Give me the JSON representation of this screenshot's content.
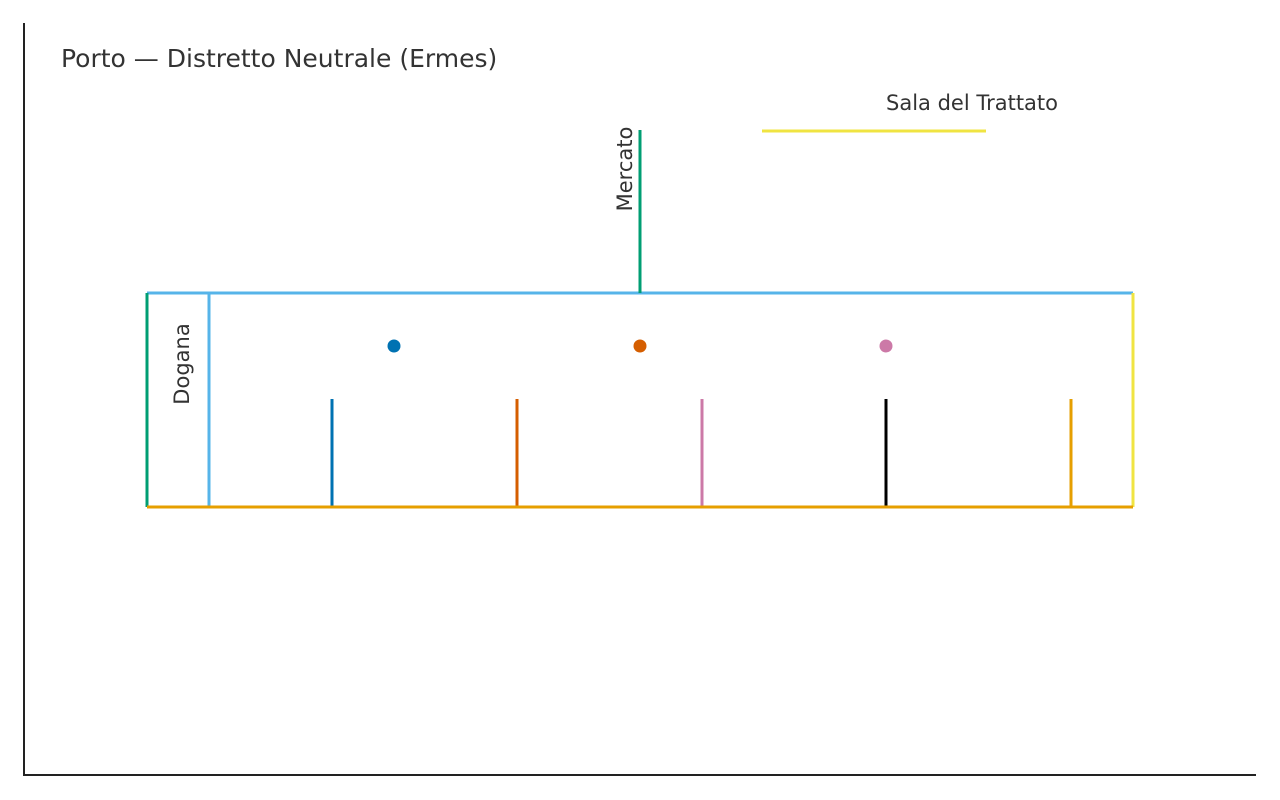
{
  "map": {
    "title": "Porto — Distretto Neutrale (Ermes)",
    "labels": {
      "dogana": "Dogana",
      "mercato": "Mercato",
      "sala": "Sala del Trattato"
    },
    "colors": {
      "axis": "#222222",
      "text": "#333333",
      "green": "#009E73",
      "sky_blue": "#56B4E9",
      "orange": "#E69F00",
      "yellow": "#F0E442",
      "blue": "#0072B2",
      "vermillion": "#D55E00",
      "pink": "#CC79A7",
      "black": "#000000"
    },
    "markers": [
      {
        "name": "marker-blue",
        "color": "#0072B2"
      },
      {
        "name": "marker-vermillion",
        "color": "#D55E00"
      },
      {
        "name": "marker-pink",
        "color": "#CC79A7"
      }
    ],
    "piers": [
      {
        "name": "pier-blue",
        "color": "#0072B2"
      },
      {
        "name": "pier-vermillion",
        "color": "#D55E00"
      },
      {
        "name": "pier-pink",
        "color": "#CC79A7"
      },
      {
        "name": "pier-black",
        "color": "#000000"
      },
      {
        "name": "pier-orange",
        "color": "#E69F00"
      }
    ]
  }
}
